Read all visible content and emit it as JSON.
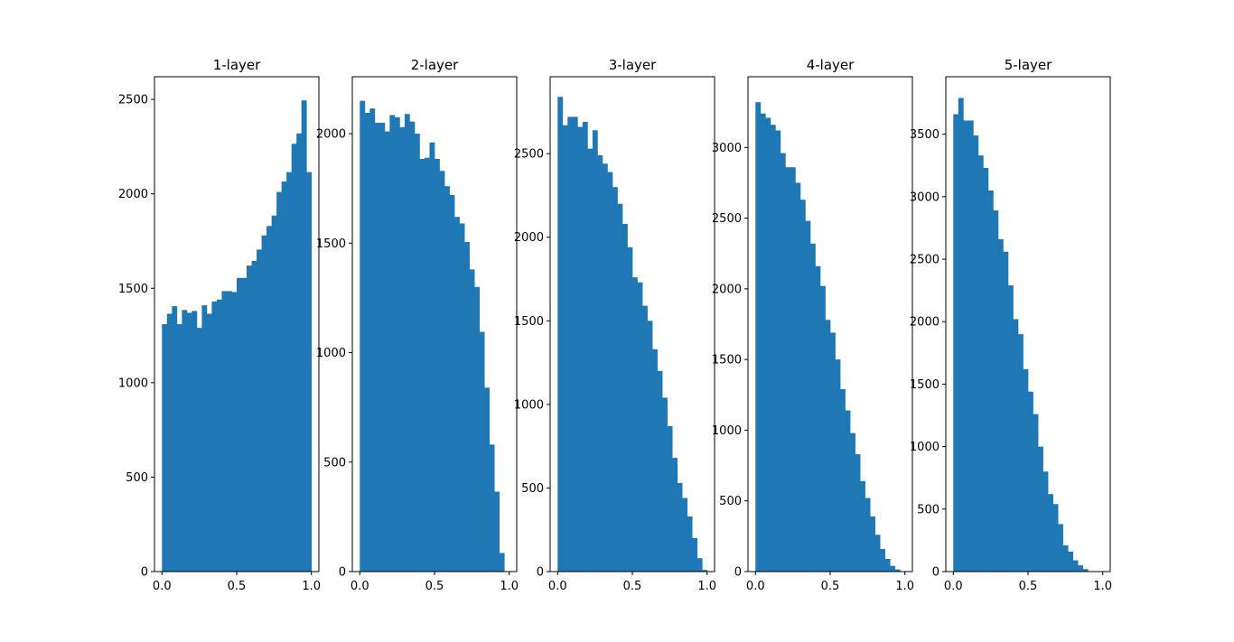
{
  "colors": {
    "bar": "#1f77b4",
    "axis": "#000000",
    "background": "#ffffff"
  },
  "chart_data": [
    {
      "type": "bar",
      "title": "1-layer",
      "xlabel": "",
      "ylabel": "",
      "xlim": [
        -0.05,
        1.05
      ],
      "ylim": [
        0,
        2620
      ],
      "xticks": [
        0.0,
        0.5,
        1.0
      ],
      "xtick_labels": [
        "0.0",
        "0.5",
        "1.0"
      ],
      "yticks": [
        0,
        500,
        1000,
        1500,
        2000,
        2500
      ],
      "ytick_labels": [
        "0",
        "500",
        "1000",
        "1500",
        "2000",
        "2500"
      ],
      "bin_edges": [
        0.0,
        0.0333,
        0.0667,
        0.1,
        0.1333,
        0.1667,
        0.2,
        0.2333,
        0.2667,
        0.3,
        0.3333,
        0.3667,
        0.4,
        0.4333,
        0.4667,
        0.5,
        0.5333,
        0.5667,
        0.6,
        0.6333,
        0.6667,
        0.7,
        0.7333,
        0.7667,
        0.8,
        0.8333,
        0.8667,
        0.9,
        0.9333,
        0.9667,
        1.0
      ],
      "values": [
        1310,
        1365,
        1405,
        1310,
        1385,
        1370,
        1380,
        1290,
        1410,
        1365,
        1430,
        1440,
        1485,
        1485,
        1480,
        1555,
        1555,
        1620,
        1645,
        1705,
        1780,
        1830,
        1885,
        2010,
        2065,
        2115,
        2265,
        2320,
        2495,
        2115
      ]
    },
    {
      "type": "bar",
      "title": "2-layer",
      "xlabel": "",
      "ylabel": "",
      "xlim": [
        -0.05,
        1.05
      ],
      "ylim": [
        0,
        2260
      ],
      "xticks": [
        0.0,
        0.5,
        1.0
      ],
      "xtick_labels": [
        "0.0",
        "0.5",
        "1.0"
      ],
      "yticks": [
        0,
        500,
        1000,
        1500,
        2000
      ],
      "ytick_labels": [
        "0",
        "500",
        "1000",
        "1500",
        "2000"
      ],
      "bin_edges": [
        0.0,
        0.0333,
        0.0667,
        0.1,
        0.1333,
        0.1667,
        0.2,
        0.2333,
        0.2667,
        0.3,
        0.3333,
        0.3667,
        0.4,
        0.4333,
        0.4667,
        0.5,
        0.5333,
        0.5667,
        0.6,
        0.6333,
        0.6667,
        0.7,
        0.7333,
        0.7667,
        0.8,
        0.8333,
        0.8667,
        0.9,
        0.9333,
        0.9667,
        1.0
      ],
      "values": [
        2150,
        2095,
        2115,
        2050,
        2050,
        2010,
        2085,
        2075,
        2030,
        2090,
        2055,
        2000,
        1885,
        1890,
        1960,
        1885,
        1830,
        1760,
        1720,
        1620,
        1590,
        1505,
        1380,
        1300,
        1095,
        840,
        580,
        365,
        85,
        0
      ]
    },
    {
      "type": "bar",
      "title": "3-layer",
      "xlabel": "",
      "ylabel": "",
      "xlim": [
        -0.05,
        1.05
      ],
      "ylim": [
        0,
        2960
      ],
      "xticks": [
        0.0,
        0.5,
        1.0
      ],
      "xtick_labels": [
        "0.0",
        "0.5",
        "1.0"
      ],
      "yticks": [
        0,
        500,
        1000,
        1500,
        2000,
        2500
      ],
      "ytick_labels": [
        "0",
        "500",
        "1000",
        "1500",
        "2000",
        "2500"
      ],
      "bin_edges": [
        0.0,
        0.0333,
        0.0667,
        0.1,
        0.1333,
        0.1667,
        0.2,
        0.2333,
        0.2667,
        0.3,
        0.3333,
        0.3667,
        0.4,
        0.4333,
        0.4667,
        0.5,
        0.5333,
        0.5667,
        0.6,
        0.6333,
        0.6667,
        0.7,
        0.7333,
        0.7667,
        0.8,
        0.8333,
        0.8667,
        0.9,
        0.9333,
        0.9667,
        1.0
      ],
      "values": [
        2840,
        2670,
        2720,
        2720,
        2660,
        2690,
        2530,
        2640,
        2490,
        2440,
        2390,
        2300,
        2200,
        2080,
        1940,
        1760,
        1730,
        1590,
        1500,
        1330,
        1200,
        1040,
        870,
        680,
        530,
        440,
        330,
        200,
        80,
        10
      ]
    },
    {
      "type": "bar",
      "title": "4-layer",
      "xlabel": "",
      "ylabel": "",
      "xlim": [
        -0.05,
        1.05
      ],
      "ylim": [
        0,
        3500
      ],
      "xticks": [
        0.0,
        0.5,
        1.0
      ],
      "xtick_labels": [
        "0.0",
        "0.5",
        "1.0"
      ],
      "yticks": [
        0,
        500,
        1000,
        1500,
        2000,
        2500,
        3000
      ],
      "ytick_labels": [
        "0",
        "500",
        "1000",
        "1500",
        "2000",
        "2500",
        "3000"
      ],
      "bin_edges": [
        0.0,
        0.0333,
        0.0667,
        0.1,
        0.1333,
        0.1667,
        0.2,
        0.2333,
        0.2667,
        0.3,
        0.3333,
        0.3667,
        0.4,
        0.4333,
        0.4667,
        0.5,
        0.5333,
        0.5667,
        0.6,
        0.6333,
        0.6667,
        0.7,
        0.7333,
        0.7667,
        0.8,
        0.8333,
        0.8667,
        0.9,
        0.9333,
        0.9667,
        1.0
      ],
      "values": [
        3320,
        3240,
        3210,
        3160,
        3120,
        2960,
        2860,
        2860,
        2750,
        2630,
        2480,
        2320,
        2160,
        2020,
        1780,
        1690,
        1500,
        1290,
        1140,
        980,
        830,
        640,
        520,
        390,
        260,
        160,
        90,
        40,
        15,
        0
      ]
    },
    {
      "type": "bar",
      "title": "5-layer",
      "xlabel": "",
      "ylabel": "",
      "xlim": [
        -0.05,
        1.05
      ],
      "ylim": [
        0,
        3960
      ],
      "xticks": [
        0.0,
        0.5,
        1.0
      ],
      "xtick_labels": [
        "0.0",
        "0.5",
        "1.0"
      ],
      "yticks": [
        0,
        500,
        1000,
        1500,
        2000,
        2500,
        3000,
        3500
      ],
      "ytick_labels": [
        "0",
        "500",
        "1000",
        "1500",
        "2000",
        "2500",
        "3000",
        "3500"
      ],
      "bin_edges": [
        0.0,
        0.0333,
        0.0667,
        0.1,
        0.1333,
        0.1667,
        0.2,
        0.2333,
        0.2667,
        0.3,
        0.3333,
        0.3667,
        0.4,
        0.4333,
        0.4667,
        0.5,
        0.5333,
        0.5667,
        0.6,
        0.6333,
        0.6667,
        0.7,
        0.7333,
        0.7667,
        0.8,
        0.8333,
        0.8667,
        0.9,
        0.9333,
        0.9667,
        1.0
      ],
      "values": [
        3660,
        3790,
        3610,
        3610,
        3490,
        3330,
        3230,
        3050,
        2890,
        2660,
        2560,
        2290,
        2020,
        1900,
        1620,
        1440,
        1260,
        1000,
        800,
        620,
        540,
        380,
        210,
        160,
        90,
        50,
        20,
        0,
        0,
        0
      ]
    }
  ]
}
